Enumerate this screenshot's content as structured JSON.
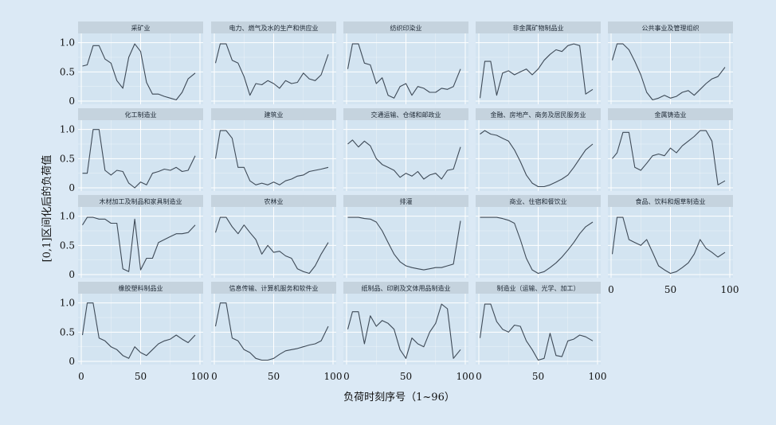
{
  "chart_data": {
    "type": "line",
    "xlabel": "负荷时刻序号（1~96）",
    "ylabel": "[0,1]区间化后的负荷值",
    "xlim": [
      0,
      100
    ],
    "ylim": [
      0,
      1.05
    ],
    "x_ticks": [
      "0",
      "50",
      "100"
    ],
    "y_ticks": [
      "0",
      "0.5",
      "1.0"
    ],
    "x_points": [
      1,
      5,
      10,
      15,
      20,
      25,
      30,
      35,
      40,
      45,
      50,
      55,
      60,
      65,
      70,
      75,
      80,
      85,
      90,
      96
    ],
    "panels": [
      {
        "title": "采矿业",
        "values": [
          0.6,
          0.62,
          0.95,
          0.95,
          0.72,
          0.65,
          0.35,
          0.22,
          0.75,
          0.98,
          0.85,
          0.32,
          0.12,
          0.12,
          0.08,
          0.05,
          0.02,
          0.15,
          0.38,
          0.48
        ]
      },
      {
        "title": "电力、燃气及水的生产和供应业",
        "values": [
          0.65,
          0.98,
          0.98,
          0.7,
          0.65,
          0.42,
          0.1,
          0.3,
          0.28,
          0.35,
          0.3,
          0.22,
          0.35,
          0.3,
          0.32,
          0.48,
          0.38,
          0.35,
          0.45,
          0.8
        ]
      },
      {
        "title": "纺织印染业",
        "values": [
          0.55,
          0.98,
          0.98,
          0.65,
          0.62,
          0.3,
          0.4,
          0.1,
          0.05,
          0.25,
          0.3,
          0.1,
          0.25,
          0.22,
          0.15,
          0.15,
          0.22,
          0.2,
          0.25,
          0.55
        ]
      },
      {
        "title": "非金属矿物制品业",
        "values": [
          0.05,
          0.68,
          0.68,
          0.1,
          0.48,
          0.52,
          0.45,
          0.5,
          0.55,
          0.45,
          0.55,
          0.7,
          0.8,
          0.88,
          0.85,
          0.95,
          0.98,
          0.95,
          0.12,
          0.2
        ]
      },
      {
        "title": "公共事业及管理组织",
        "values": [
          0.7,
          0.98,
          0.98,
          0.88,
          0.68,
          0.45,
          0.15,
          0.02,
          0.05,
          0.1,
          0.05,
          0.08,
          0.15,
          0.18,
          0.1,
          0.2,
          0.3,
          0.38,
          0.42,
          0.58
        ]
      },
      {
        "title": "化工制造业",
        "values": [
          0.25,
          0.25,
          1.0,
          1.0,
          0.3,
          0.22,
          0.3,
          0.28,
          0.08,
          0.0,
          0.1,
          0.05,
          0.25,
          0.28,
          0.32,
          0.3,
          0.35,
          0.28,
          0.3,
          0.55
        ]
      },
      {
        "title": "建筑业",
        "values": [
          0.5,
          0.98,
          0.98,
          0.85,
          0.35,
          0.35,
          0.12,
          0.05,
          0.08,
          0.05,
          0.1,
          0.05,
          0.12,
          0.15,
          0.2,
          0.22,
          0.28,
          0.3,
          0.32,
          0.35
        ]
      },
      {
        "title": "交通运输、仓储和邮政业",
        "values": [
          0.75,
          0.82,
          0.7,
          0.8,
          0.72,
          0.5,
          0.4,
          0.35,
          0.3,
          0.18,
          0.25,
          0.2,
          0.28,
          0.15,
          0.22,
          0.25,
          0.15,
          0.3,
          0.32,
          0.7
        ]
      },
      {
        "title": "金融、房地产、商务及居民服务业",
        "values": [
          0.92,
          0.98,
          0.92,
          0.9,
          0.85,
          0.8,
          0.65,
          0.45,
          0.22,
          0.08,
          0.02,
          0.02,
          0.05,
          0.1,
          0.15,
          0.22,
          0.35,
          0.5,
          0.65,
          0.75
        ]
      },
      {
        "title": "金属铸造业",
        "values": [
          0.5,
          0.6,
          0.95,
          0.95,
          0.35,
          0.3,
          0.42,
          0.55,
          0.58,
          0.55,
          0.68,
          0.6,
          0.72,
          0.8,
          0.88,
          0.98,
          0.98,
          0.8,
          0.05,
          0.12
        ]
      },
      {
        "title": "木材加工及制品和家具制造业",
        "values": [
          0.85,
          0.98,
          0.98,
          0.95,
          0.95,
          0.88,
          0.88,
          0.1,
          0.05,
          0.95,
          0.08,
          0.28,
          0.28,
          0.55,
          0.6,
          0.65,
          0.7,
          0.7,
          0.72,
          0.85
        ]
      },
      {
        "title": "农林业",
        "values": [
          0.72,
          0.98,
          0.98,
          0.82,
          0.7,
          0.85,
          0.72,
          0.6,
          0.35,
          0.5,
          0.38,
          0.4,
          0.32,
          0.28,
          0.1,
          0.05,
          0.02,
          0.15,
          0.35,
          0.55
        ]
      },
      {
        "title": "排灌",
        "values": [
          0.98,
          0.98,
          0.98,
          0.96,
          0.95,
          0.9,
          0.75,
          0.55,
          0.35,
          0.22,
          0.15,
          0.12,
          0.1,
          0.08,
          0.1,
          0.12,
          0.12,
          0.15,
          0.18,
          0.92
        ]
      },
      {
        "title": "商业、住宿和餐饮业",
        "values": [
          0.98,
          0.98,
          0.98,
          0.98,
          0.96,
          0.93,
          0.88,
          0.6,
          0.28,
          0.08,
          0.02,
          0.05,
          0.12,
          0.2,
          0.3,
          0.42,
          0.55,
          0.7,
          0.82,
          0.9
        ]
      },
      {
        "title": "食品、饮料和烟草制造业",
        "values": [
          0.35,
          0.98,
          0.98,
          0.6,
          0.55,
          0.5,
          0.6,
          0.38,
          0.15,
          0.08,
          0.02,
          0.05,
          0.12,
          0.2,
          0.35,
          0.6,
          0.45,
          0.38,
          0.3,
          0.38
        ]
      },
      {
        "title": "橡胶塑料制品业",
        "values": [
          0.45,
          1.0,
          1.0,
          0.4,
          0.35,
          0.25,
          0.2,
          0.1,
          0.05,
          0.25,
          0.15,
          0.1,
          0.2,
          0.3,
          0.35,
          0.38,
          0.45,
          0.38,
          0.32,
          0.45
        ]
      },
      {
        "title": "信息传输、计算机服务和软件业",
        "values": [
          0.6,
          1.0,
          1.0,
          0.4,
          0.35,
          0.2,
          0.15,
          0.05,
          0.02,
          0.02,
          0.05,
          0.12,
          0.18,
          0.2,
          0.22,
          0.25,
          0.28,
          0.3,
          0.35,
          0.6
        ]
      },
      {
        "title": "纸制品、印刷及文体用品制造业",
        "values": [
          0.55,
          0.85,
          0.85,
          0.3,
          0.78,
          0.6,
          0.7,
          0.65,
          0.55,
          0.2,
          0.05,
          0.4,
          0.3,
          0.25,
          0.5,
          0.65,
          0.98,
          0.9,
          0.05,
          0.2
        ]
      },
      {
        "title": "制造业（运输、光学、加工）",
        "values": [
          0.4,
          0.98,
          0.98,
          0.68,
          0.55,
          0.5,
          0.62,
          0.6,
          0.35,
          0.2,
          0.02,
          0.05,
          0.48,
          0.1,
          0.08,
          0.35,
          0.38,
          0.45,
          0.42,
          0.35
        ]
      }
    ]
  }
}
